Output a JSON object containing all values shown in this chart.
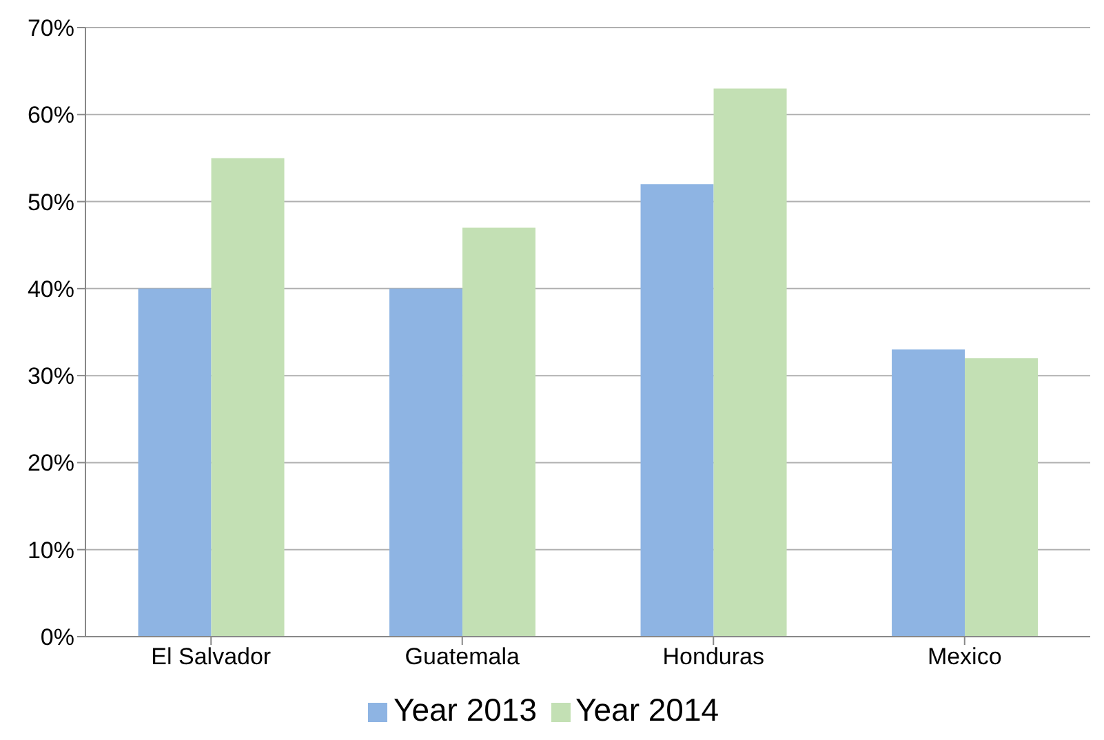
{
  "chart_data": {
    "type": "bar",
    "categories": [
      "El Salvador",
      "Guatemala",
      "Honduras",
      "Mexico"
    ],
    "series": [
      {
        "name": "Year 2013",
        "color": "#8eb4e3",
        "values": [
          40,
          40,
          52,
          33
        ]
      },
      {
        "name": "Year 2014",
        "color": "#c3e0b4",
        "values": [
          55,
          47,
          63,
          32
        ]
      }
    ],
    "ylim": [
      0,
      70
    ],
    "yticks": [
      {
        "value": 0,
        "label": "0%"
      },
      {
        "value": 10,
        "label": "10%"
      },
      {
        "value": 20,
        "label": "20%"
      },
      {
        "value": 30,
        "label": "30%"
      },
      {
        "value": 40,
        "label": "40%"
      },
      {
        "value": 50,
        "label": "50%"
      },
      {
        "value": 60,
        "label": "60%"
      },
      {
        "value": 70,
        "label": "70%"
      }
    ],
    "grid": "y",
    "legend": "bottom"
  }
}
